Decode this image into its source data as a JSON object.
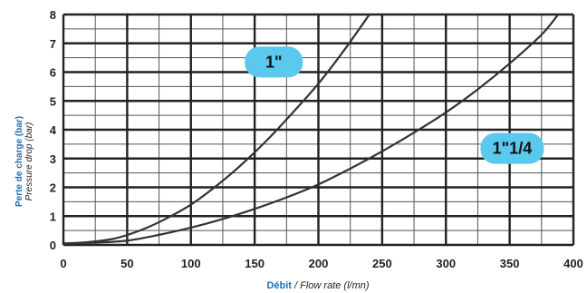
{
  "colors": {
    "axis_title_primary": "#1f6fb2",
    "curve": "#333333",
    "grid": "#555555",
    "callout_fill": "#5bc8ee"
  },
  "chart_data": {
    "type": "line",
    "xlabel": {
      "primary": "Débit",
      "separator": " / ",
      "secondary": "Flow rate (l/mn)"
    },
    "ylabel": {
      "primary": "Perte de charge (bar)",
      "secondary": "Pressure drop (bar)"
    },
    "xlim": [
      0,
      400
    ],
    "ylim": [
      0,
      8
    ],
    "x_ticks": [
      0,
      50,
      100,
      150,
      200,
      250,
      300,
      350,
      400
    ],
    "y_ticks": [
      0,
      1,
      2,
      3,
      4,
      5,
      6,
      7,
      8
    ],
    "grid": {
      "x_step": 25,
      "y_step": 0.5,
      "major_x_step": 50,
      "major_y_step": 1
    },
    "series": [
      {
        "name": "1\"",
        "x": [
          0,
          20,
          40,
          60,
          80,
          100,
          120,
          140,
          160,
          180,
          200,
          220,
          240
        ],
        "y": [
          0.05,
          0.1,
          0.22,
          0.5,
          0.9,
          1.4,
          2.05,
          2.8,
          3.65,
          4.6,
          5.6,
          6.75,
          8.0
        ]
      },
      {
        "name": "1\"1/4",
        "x": [
          0,
          25,
          50,
          75,
          100,
          125,
          150,
          175,
          200,
          225,
          250,
          275,
          300,
          325,
          350,
          375,
          388
        ],
        "y": [
          0.05,
          0.08,
          0.15,
          0.35,
          0.6,
          0.9,
          1.25,
          1.65,
          2.1,
          2.65,
          3.25,
          3.9,
          4.6,
          5.4,
          6.3,
          7.3,
          8.0
        ]
      }
    ],
    "callouts": [
      {
        "text": "1\"",
        "series": "1\"",
        "x": 165,
        "y": 6.35
      },
      {
        "text": "1\"1/4",
        "series": "1\"1/4",
        "x": 352,
        "y": 3.35
      }
    ]
  }
}
